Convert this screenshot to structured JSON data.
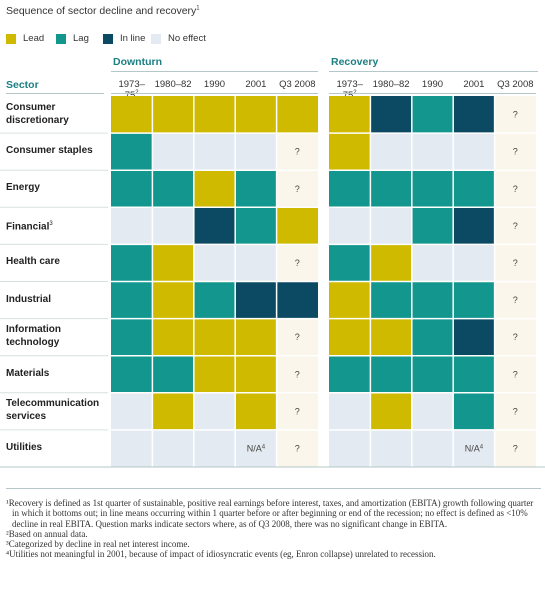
{
  "title": "Sequence of sector decline and recovery",
  "title_note": "1",
  "legend": [
    {
      "label": "Lead",
      "color": "#cfba00"
    },
    {
      "label": "Lag",
      "color": "#12968e"
    },
    {
      "label": "In line",
      "color": "#0c4a63"
    },
    {
      "label": "No effect",
      "color": "#e4eaf1"
    }
  ],
  "sector_header": "Sector",
  "group_titles": [
    "Downturn",
    "Recovery"
  ],
  "periods": [
    {
      "label": "1973–75",
      "note": "2"
    },
    {
      "label": "1980–82",
      "note": ""
    },
    {
      "label": "1990",
      "note": ""
    },
    {
      "label": "2001",
      "note": ""
    },
    {
      "label": "Q3 2008",
      "note": ""
    }
  ],
  "colors": {
    "lead": "#cfba00",
    "lag": "#12968e",
    "inline": "#0c4a63",
    "none": "#e4eaf1",
    "unknown": "#fbf6ec",
    "accent": "#1b7f83"
  },
  "chart_data": {
    "type": "heatmap",
    "title": "Sequence of sector decline and recovery",
    "categories": [
      "Lead",
      "Lag",
      "In line",
      "No effect"
    ],
    "rows": [
      {
        "sector": "Consumer discretionary",
        "line1": "Consumer",
        "line2": "discretionary",
        "note": "",
        "downturn": [
          "lead",
          "lead",
          "lead",
          "lead",
          "lead"
        ],
        "recovery": [
          "lead",
          "inline",
          "lag",
          "inline",
          "?"
        ]
      },
      {
        "sector": "Consumer staples",
        "line1": "Consumer staples",
        "line2": "",
        "note": "",
        "downturn": [
          "lag",
          "none",
          "none",
          "none",
          "?"
        ],
        "recovery": [
          "lead",
          "none",
          "none",
          "none",
          "?"
        ]
      },
      {
        "sector": "Energy",
        "line1": "Energy",
        "line2": "",
        "note": "",
        "downturn": [
          "lag",
          "lag",
          "lead",
          "lag",
          "?"
        ],
        "recovery": [
          "lag",
          "lag",
          "lag",
          "lag",
          "?"
        ]
      },
      {
        "sector": "Financial",
        "line1": "Financial",
        "line2": "",
        "note": "3",
        "downturn": [
          "none",
          "none",
          "inline",
          "lag",
          "lead"
        ],
        "recovery": [
          "none",
          "none",
          "lag",
          "inline",
          "?"
        ]
      },
      {
        "sector": "Health care",
        "line1": "Health care",
        "line2": "",
        "note": "",
        "downturn": [
          "lag",
          "lead",
          "none",
          "none",
          "?"
        ],
        "recovery": [
          "lag",
          "lead",
          "none",
          "none",
          "?"
        ]
      },
      {
        "sector": "Industrial",
        "line1": "Industrial",
        "line2": "",
        "note": "",
        "downturn": [
          "lag",
          "lead",
          "lag",
          "inline",
          "inline"
        ],
        "recovery": [
          "lead",
          "lag",
          "lag",
          "lag",
          "?"
        ]
      },
      {
        "sector": "Information technology",
        "line1": "Information",
        "line2": "technology",
        "note": "",
        "downturn": [
          "lag",
          "lead",
          "lead",
          "lead",
          "?"
        ],
        "recovery": [
          "lead",
          "lead",
          "lag",
          "inline",
          "?"
        ]
      },
      {
        "sector": "Materials",
        "line1": "Materials",
        "line2": "",
        "note": "",
        "downturn": [
          "lag",
          "lag",
          "lead",
          "lead",
          "?"
        ],
        "recovery": [
          "lag",
          "lag",
          "lag",
          "lag",
          "?"
        ]
      },
      {
        "sector": "Telecommunication services",
        "line1": "Telecommunication",
        "line2": "services",
        "note": "",
        "downturn": [
          "none",
          "lead",
          "none",
          "lead",
          "?"
        ],
        "recovery": [
          "none",
          "lead",
          "none",
          "lag",
          "?"
        ]
      },
      {
        "sector": "Utilities",
        "line1": "Utilities",
        "line2": "",
        "note": "",
        "downturn": [
          "none",
          "none",
          "none",
          "n/a",
          "?"
        ],
        "recovery": [
          "none",
          "none",
          "none",
          "n/a",
          "?"
        ]
      }
    ],
    "na_text": "N/A",
    "na_note": "4",
    "unknown_text": "?"
  },
  "footnotes": [
    {
      "text": "¹Recovery is defined as 1st quarter of sustainable, positive real earnings before interest, taxes, and amortization (EBITA) growth following quarter in which it bottoms out; in line means occurring within 1 quarter before or after beginning or end of the recession; no effect is defined as <10% decline in real EBITA. Question marks indicate sectors where, as of Q3 2008, there was no significant change in EBITA."
    },
    {
      "text": "²Based on annual data."
    },
    {
      "text": "³Categorized by decline in real net interest income."
    },
    {
      "text": "⁴Utilities not meaningful in 2001, because of impact of idiosyncratic events (eg, Enron collapse) unrelated to recession."
    }
  ]
}
